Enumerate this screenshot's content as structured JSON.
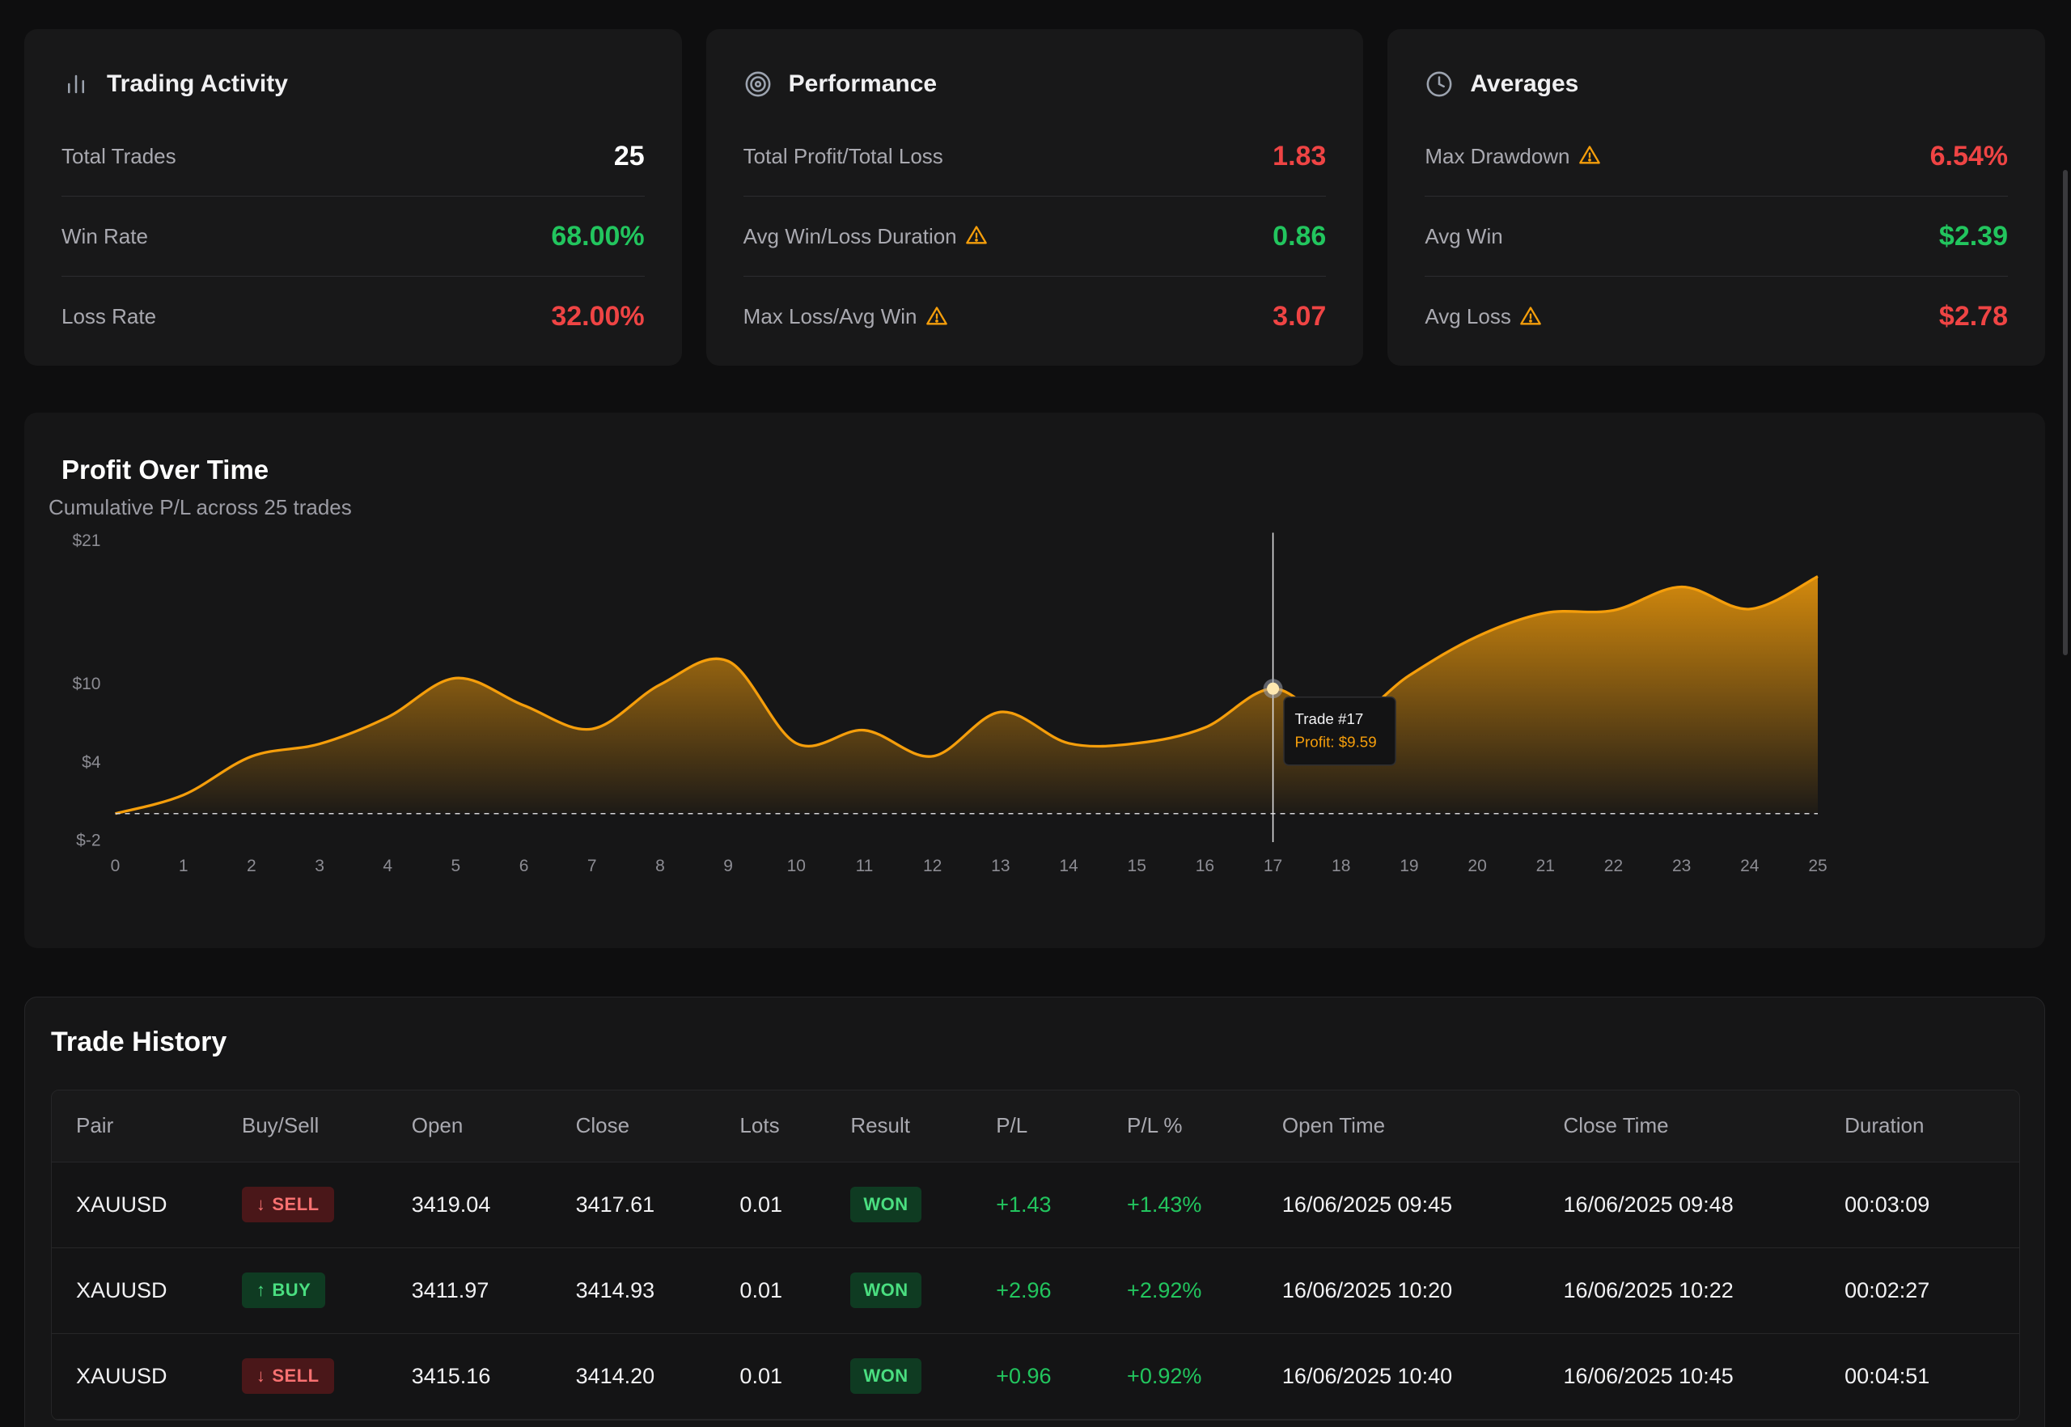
{
  "cards": [
    {
      "title": "Trading Activity",
      "icon": "bar-chart-icon",
      "rows": [
        {
          "label": "Total Trades",
          "value": "25",
          "tone": "white",
          "warn": false
        },
        {
          "label": "Win Rate",
          "value": "68.00%",
          "tone": "green",
          "warn": false
        },
        {
          "label": "Loss Rate",
          "value": "32.00%",
          "tone": "red",
          "warn": false
        }
      ]
    },
    {
      "title": "Performance",
      "icon": "target-icon",
      "rows": [
        {
          "label": "Total Profit/Total Loss",
          "value": "1.83",
          "tone": "red",
          "warn": false
        },
        {
          "label": "Avg Win/Loss Duration",
          "value": "0.86",
          "tone": "green",
          "warn": true
        },
        {
          "label": "Max Loss/Avg Win",
          "value": "3.07",
          "tone": "red",
          "warn": true
        }
      ]
    },
    {
      "title": "Averages",
      "icon": "clock-icon",
      "rows": [
        {
          "label": "Max Drawdown",
          "value": "6.54%",
          "tone": "red",
          "warn": true
        },
        {
          "label": "Avg Win",
          "value": "$2.39",
          "tone": "green",
          "warn": false
        },
        {
          "label": "Avg Loss",
          "value": "$2.78",
          "tone": "red",
          "warn": true
        }
      ]
    }
  ],
  "chart_data": {
    "type": "area",
    "title": "Profit Over Time",
    "subtitle": "Cumulative P/L across 25 trades",
    "x": [
      0,
      1,
      2,
      3,
      4,
      5,
      6,
      7,
      8,
      9,
      10,
      11,
      12,
      13,
      14,
      15,
      16,
      17,
      18,
      19,
      20,
      21,
      22,
      23,
      24,
      25
    ],
    "series": [
      {
        "values": [
          0,
          1.43,
          4.39,
          5.35,
          7.4,
          10.4,
          8.3,
          6.5,
          9.9,
          11.7,
          5.4,
          6.4,
          4.4,
          7.8,
          5.4,
          5.4,
          6.6,
          9.59,
          6.9,
          10.6,
          13.6,
          15.4,
          15.6,
          17.4,
          15.7,
          18.2
        ]
      }
    ],
    "y_ticks": [
      "$21",
      "$10",
      "$4",
      "$-2"
    ],
    "y_tick_values": [
      21,
      10,
      4,
      -2
    ],
    "ylim": [
      -2,
      21
    ],
    "xlim": [
      0,
      25
    ],
    "zero_line": 0,
    "color": "#f59e0b",
    "tooltip": {
      "trade": 17,
      "title": "Trade #17",
      "value_label": "Profit: $9.59"
    }
  },
  "history": {
    "title": "Trade History",
    "columns": [
      "Pair",
      "Buy/Sell",
      "Open",
      "Close",
      "Lots",
      "Result",
      "P/L",
      "P/L %",
      "Open Time",
      "Close Time",
      "Duration"
    ],
    "rows": [
      {
        "pair": "XAUUSD",
        "side": "SELL",
        "open": "3419.04",
        "close": "3417.61",
        "lots": "0.01",
        "result": "WON",
        "pl": "+1.43",
        "plpct": "+1.43%",
        "open_time": "16/06/2025 09:45",
        "close_time": "16/06/2025 09:48",
        "duration": "00:03:09"
      },
      {
        "pair": "XAUUSD",
        "side": "BUY",
        "open": "3411.97",
        "close": "3414.93",
        "lots": "0.01",
        "result": "WON",
        "pl": "+2.96",
        "plpct": "+2.92%",
        "open_time": "16/06/2025 10:20",
        "close_time": "16/06/2025 10:22",
        "duration": "00:02:27"
      },
      {
        "pair": "XAUUSD",
        "side": "SELL",
        "open": "3415.16",
        "close": "3414.20",
        "lots": "0.01",
        "result": "WON",
        "pl": "+0.96",
        "plpct": "+0.92%",
        "open_time": "16/06/2025 10:40",
        "close_time": "16/06/2025 10:45",
        "duration": "00:04:51"
      }
    ]
  }
}
